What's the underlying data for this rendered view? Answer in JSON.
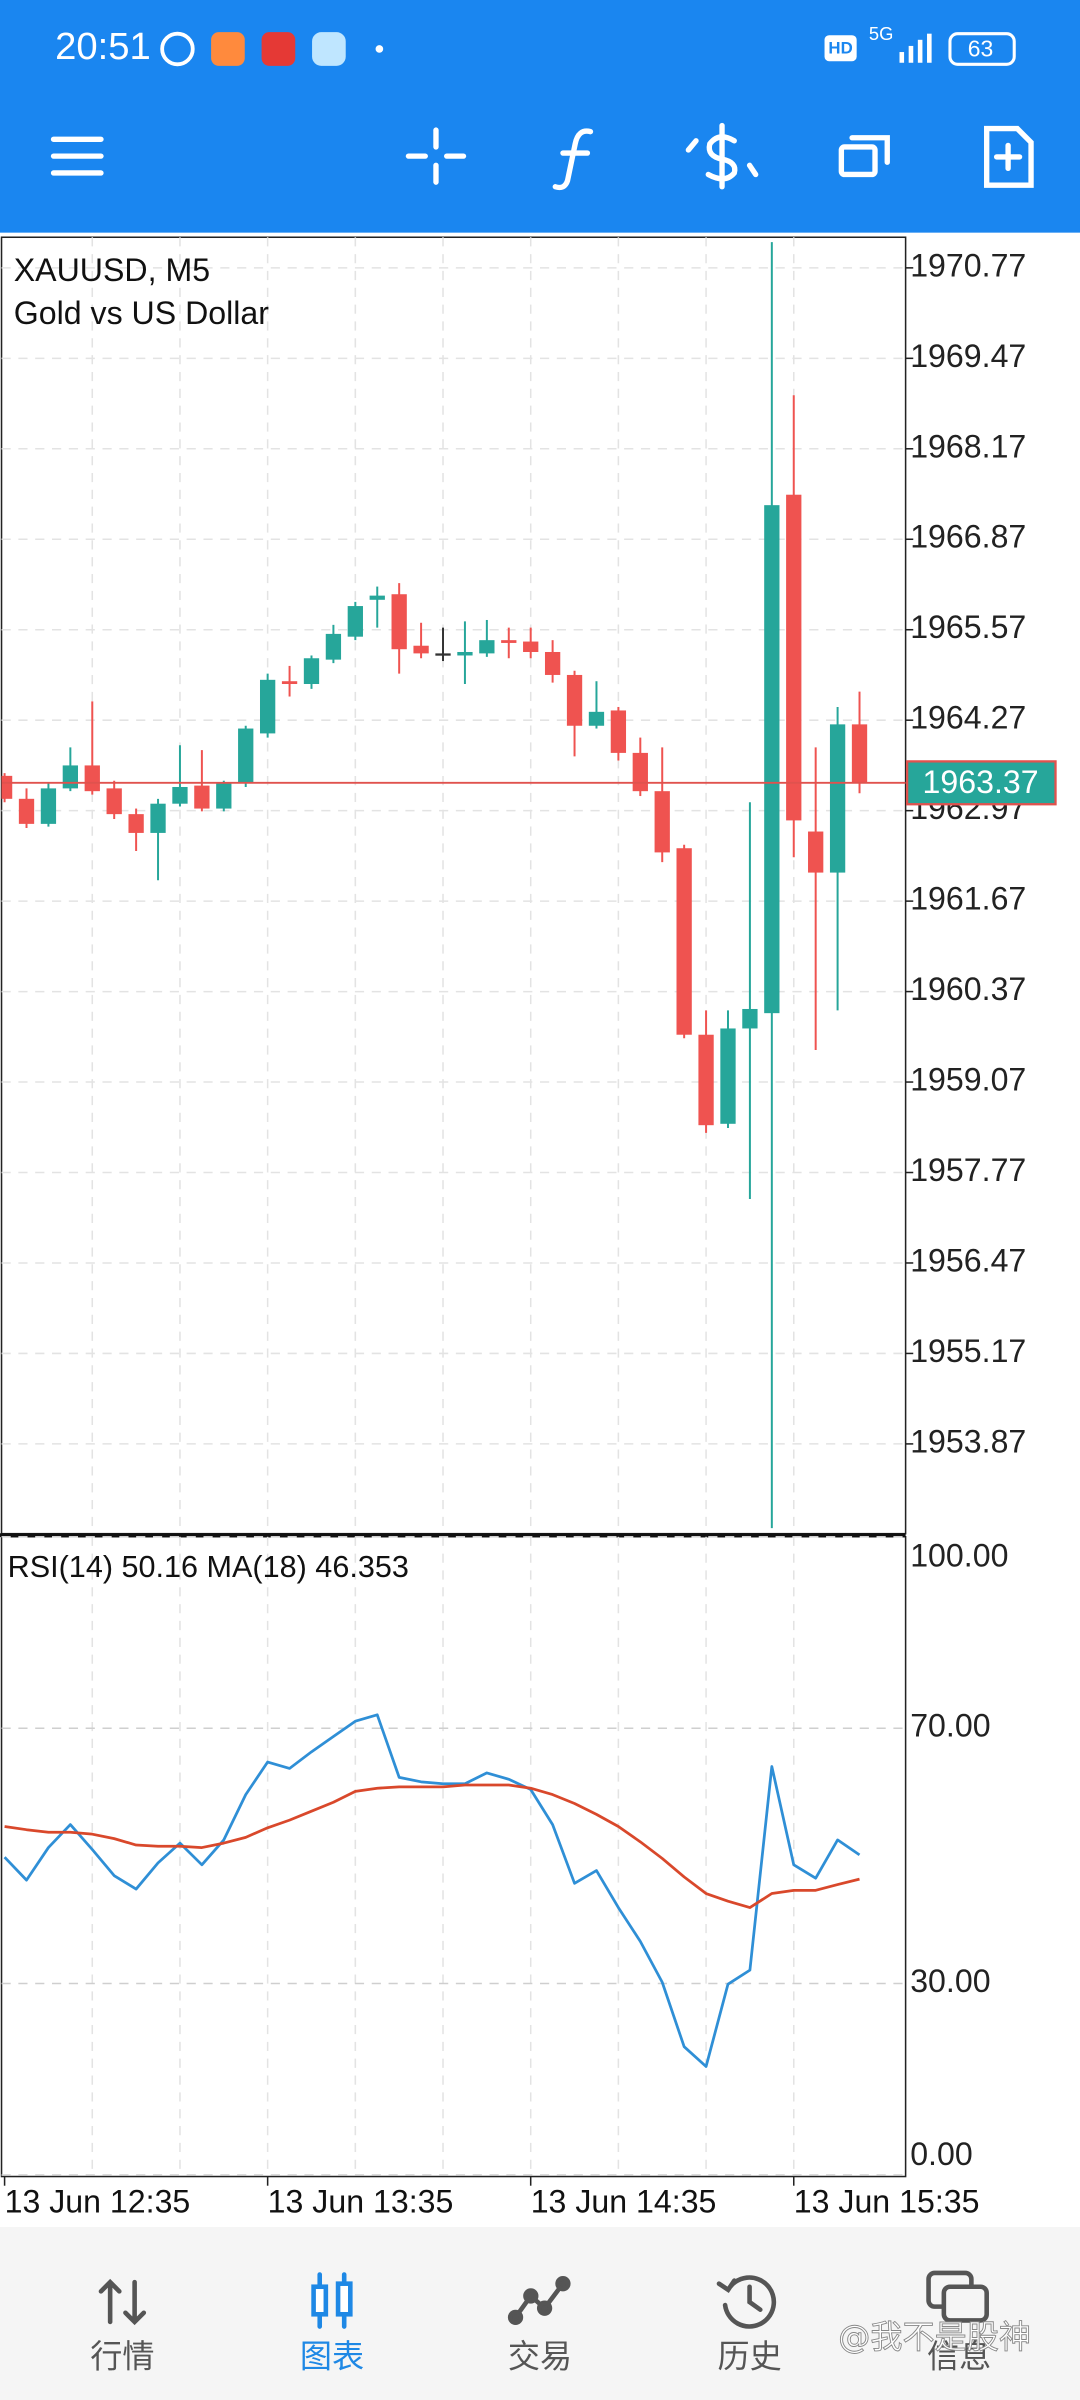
{
  "status_bar": {
    "time": "20:51",
    "hd": "HD",
    "network": "5G",
    "battery": "63"
  },
  "chart_data": [
    {
      "type": "candlestick",
      "title": "XAUUSD, M5",
      "subtitle": "Gold vs US Dollar",
      "categories": [
        "13 Jun 12:35",
        null,
        null,
        null,
        null,
        null,
        null,
        null,
        null,
        null,
        null,
        null,
        "13 Jun 13:35",
        null,
        null,
        null,
        null,
        null,
        null,
        null,
        null,
        null,
        null,
        null,
        "13 Jun 14:35",
        null,
        null,
        null,
        null,
        null,
        null,
        null,
        null,
        null,
        null,
        null,
        "13 Jun 15:35",
        null,
        null,
        null
      ],
      "open": [
        1963.47,
        1963.14,
        1962.78,
        1963.29,
        1963.62,
        1963.29,
        1962.92,
        1962.65,
        1963.07,
        1963.33,
        1963,
        1963.36,
        1964.08,
        1964.83,
        1964.79,
        1965.14,
        1965.47,
        1966,
        1966.08,
        1965.34,
        1965.23,
        1965.2,
        1965.23,
        1965.42,
        1965.4,
        1965.25,
        1964.92,
        1964.19,
        1964.41,
        1963.8,
        1963.25,
        1962.43,
        1959.75,
        1958.47,
        1959.84,
        1960.06,
        1967.51,
        1962.67,
        1962.08,
        1964.21
      ],
      "high": [
        1963.51,
        1963.29,
        1963.36,
        1963.88,
        1964.54,
        1963.4,
        1963,
        1963.14,
        1963.91,
        1963.84,
        1963.4,
        1964.19,
        1964.94,
        1965.05,
        1965.2,
        1965.64,
        1965.97,
        1966.19,
        1966.24,
        1965.67,
        1965.6,
        1965.69,
        1965.71,
        1965.6,
        1965.6,
        1965.42,
        1964.98,
        1964.83,
        1964.46,
        1964.02,
        1963.88,
        1962.48,
        1960.1,
        1960.1,
        1963.09,
        1971.14,
        1968.94,
        1963.88,
        1964.46,
        1964.68
      ],
      "low": [
        1963.09,
        1962.72,
        1962.74,
        1963.25,
        1963.2,
        1962.85,
        1962.39,
        1961.97,
        1963.03,
        1962.96,
        1962.96,
        1963.31,
        1964.02,
        1964.61,
        1964.72,
        1965.09,
        1965.42,
        1965.6,
        1964.94,
        1965.16,
        1965.12,
        1964.79,
        1965.18,
        1965.16,
        1965.16,
        1964.81,
        1963.75,
        1964.15,
        1963.69,
        1963.18,
        1962.23,
        1959.7,
        1958.34,
        1958.41,
        1957.39,
        1952.66,
        1962.3,
        1959.53,
        1960.1,
        1963.22
      ],
      "close": [
        1963.14,
        1962.78,
        1963.29,
        1963.62,
        1963.25,
        1962.92,
        1962.65,
        1963.07,
        1963.31,
        1963,
        1963.36,
        1964.15,
        1964.85,
        1964.79,
        1965.16,
        1965.51,
        1965.91,
        1966.06,
        1965.29,
        1965.23,
        1965.23,
        1965.25,
        1965.42,
        1965.38,
        1965.25,
        1964.92,
        1964.19,
        1964.39,
        1963.8,
        1963.25,
        1962.37,
        1959.75,
        1958.45,
        1959.84,
        1960.12,
        1967.36,
        1962.83,
        1962.08,
        1964.21,
        1963.36
      ],
      "up_color": "#26a69a",
      "down_color": "#ef5350",
      "doji_color": "#333333",
      "ylim": [
        1952.58,
        1971.21
      ],
      "yticks": [
        1970.77,
        1969.47,
        1968.17,
        1966.87,
        1965.57,
        1964.27,
        1962.97,
        1961.67,
        1960.37,
        1959.07,
        1957.77,
        1956.47,
        1955.17,
        1953.87
      ],
      "current_price": 1963.37,
      "current_price_color": "#e0524e",
      "grid": true
    },
    {
      "type": "line",
      "label": "RSI(14) 50.16 MA(18) 46.353",
      "series": [
        {
          "color": "#2f8fd6",
          "values": [
            49.8,
            46.2,
            51.3,
            54.9,
            51.0,
            46.9,
            44.8,
            48.9,
            52.0,
            48.6,
            52.5,
            59.6,
            64.7,
            63.7,
            66.3,
            68.7,
            71.1,
            72.1,
            62.3,
            61.6,
            61.3,
            61.3,
            63.0,
            62.0,
            60.4,
            54.9,
            45.7,
            47.7,
            41.9,
            36.6,
            30.2,
            20.1,
            17.0,
            29.9,
            32.1,
            64.0,
            48.6,
            46.5,
            52.5,
            50.16
          ]
        },
        {
          "color": "#d9482b",
          "values": [
            54.6,
            54.1,
            53.7,
            53.7,
            53.4,
            52.7,
            51.7,
            51.5,
            51.5,
            51.3,
            52.0,
            52.9,
            54.4,
            55.6,
            57.0,
            58.4,
            60.1,
            60.6,
            60.8,
            60.8,
            60.8,
            61.1,
            61.1,
            61.1,
            60.6,
            59.6,
            58.2,
            56.5,
            54.6,
            52.2,
            49.6,
            46.7,
            44.1,
            42.9,
            41.9,
            44.1,
            44.6,
            44.6,
            45.5,
            46.353
          ]
        }
      ],
      "ylim": [
        0,
        100
      ],
      "yticks": [
        {
          "value": 100,
          "label": "100.00"
        },
        {
          "value": 70,
          "label": "70.00"
        },
        {
          "value": 30,
          "label": "30.00"
        },
        {
          "value": 0,
          "label": "0.00"
        }
      ],
      "grid": true
    }
  ],
  "nav": {
    "tabs": [
      "行情",
      "图表",
      "交易",
      "历史",
      "信息"
    ],
    "active_tab": 1,
    "active_color": "#1e88e5",
    "color": "#555555"
  },
  "watermark": "@我不是股神"
}
